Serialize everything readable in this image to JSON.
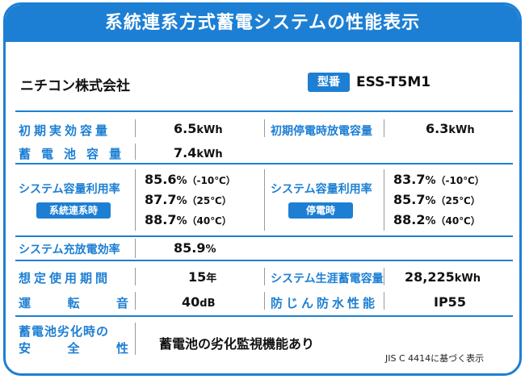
{
  "title": "系統連系方式蓄電システムの性能表示",
  "company": "ニチコン株式会社",
  "model": {
    "badge": "型番",
    "value": "ESS-T5M1"
  },
  "rows": {
    "initial_capacity": {
      "label": "初期実効容量",
      "value": "6.5",
      "unit": "kWh"
    },
    "initial_outage_capacity": {
      "label": "初期停電時放電容量",
      "value": "6.3",
      "unit": "kWh"
    },
    "battery_capacity": {
      "label": "蓄電池容量",
      "value": "7.4",
      "unit": "kWh"
    },
    "util_grid": {
      "label": "システム容量利用率",
      "tag": "系統連系時",
      "values": [
        {
          "value": "85.6",
          "unit": "%",
          "cond": "（-10℃）"
        },
        {
          "value": "87.7",
          "unit": "%",
          "cond": "（25℃）"
        },
        {
          "value": "88.7",
          "unit": "%",
          "cond": "（40℃）"
        }
      ]
    },
    "util_outage": {
      "label": "システム容量利用率",
      "tag": "停電時",
      "values": [
        {
          "value": "83.7",
          "unit": "%",
          "cond": "（-10℃）"
        },
        {
          "value": "85.7",
          "unit": "%",
          "cond": "（25℃）"
        },
        {
          "value": "88.2",
          "unit": "%",
          "cond": "（40℃）"
        }
      ]
    },
    "efficiency": {
      "label": "システム充放電効率",
      "value": "85.9",
      "unit": "%"
    },
    "lifetime": {
      "label": "想定使用期間",
      "value": "15",
      "unit": "年"
    },
    "lifetime_storage": {
      "label": "システム生涯蓄電容量",
      "value": "28,225",
      "unit": "kWh"
    },
    "noise": {
      "label": "運転音",
      "label_chars": [
        "運",
        "転",
        "音"
      ],
      "value": "40",
      "unit": "dB"
    },
    "waterproof": {
      "label": "防じん防水性能",
      "value": "IP55"
    },
    "safety": {
      "label_line1": "蓄電池劣化時の",
      "label_line2_chars": [
        "安",
        "全",
        "性"
      ],
      "value": "蓄電池の劣化監視機能あり"
    }
  },
  "footnote": "JIS C 4414に基づく表示",
  "colors": {
    "accent": "#1d7fd3",
    "text": "#111111",
    "divider": "#9a9a9a",
    "background": "#ffffff"
  }
}
